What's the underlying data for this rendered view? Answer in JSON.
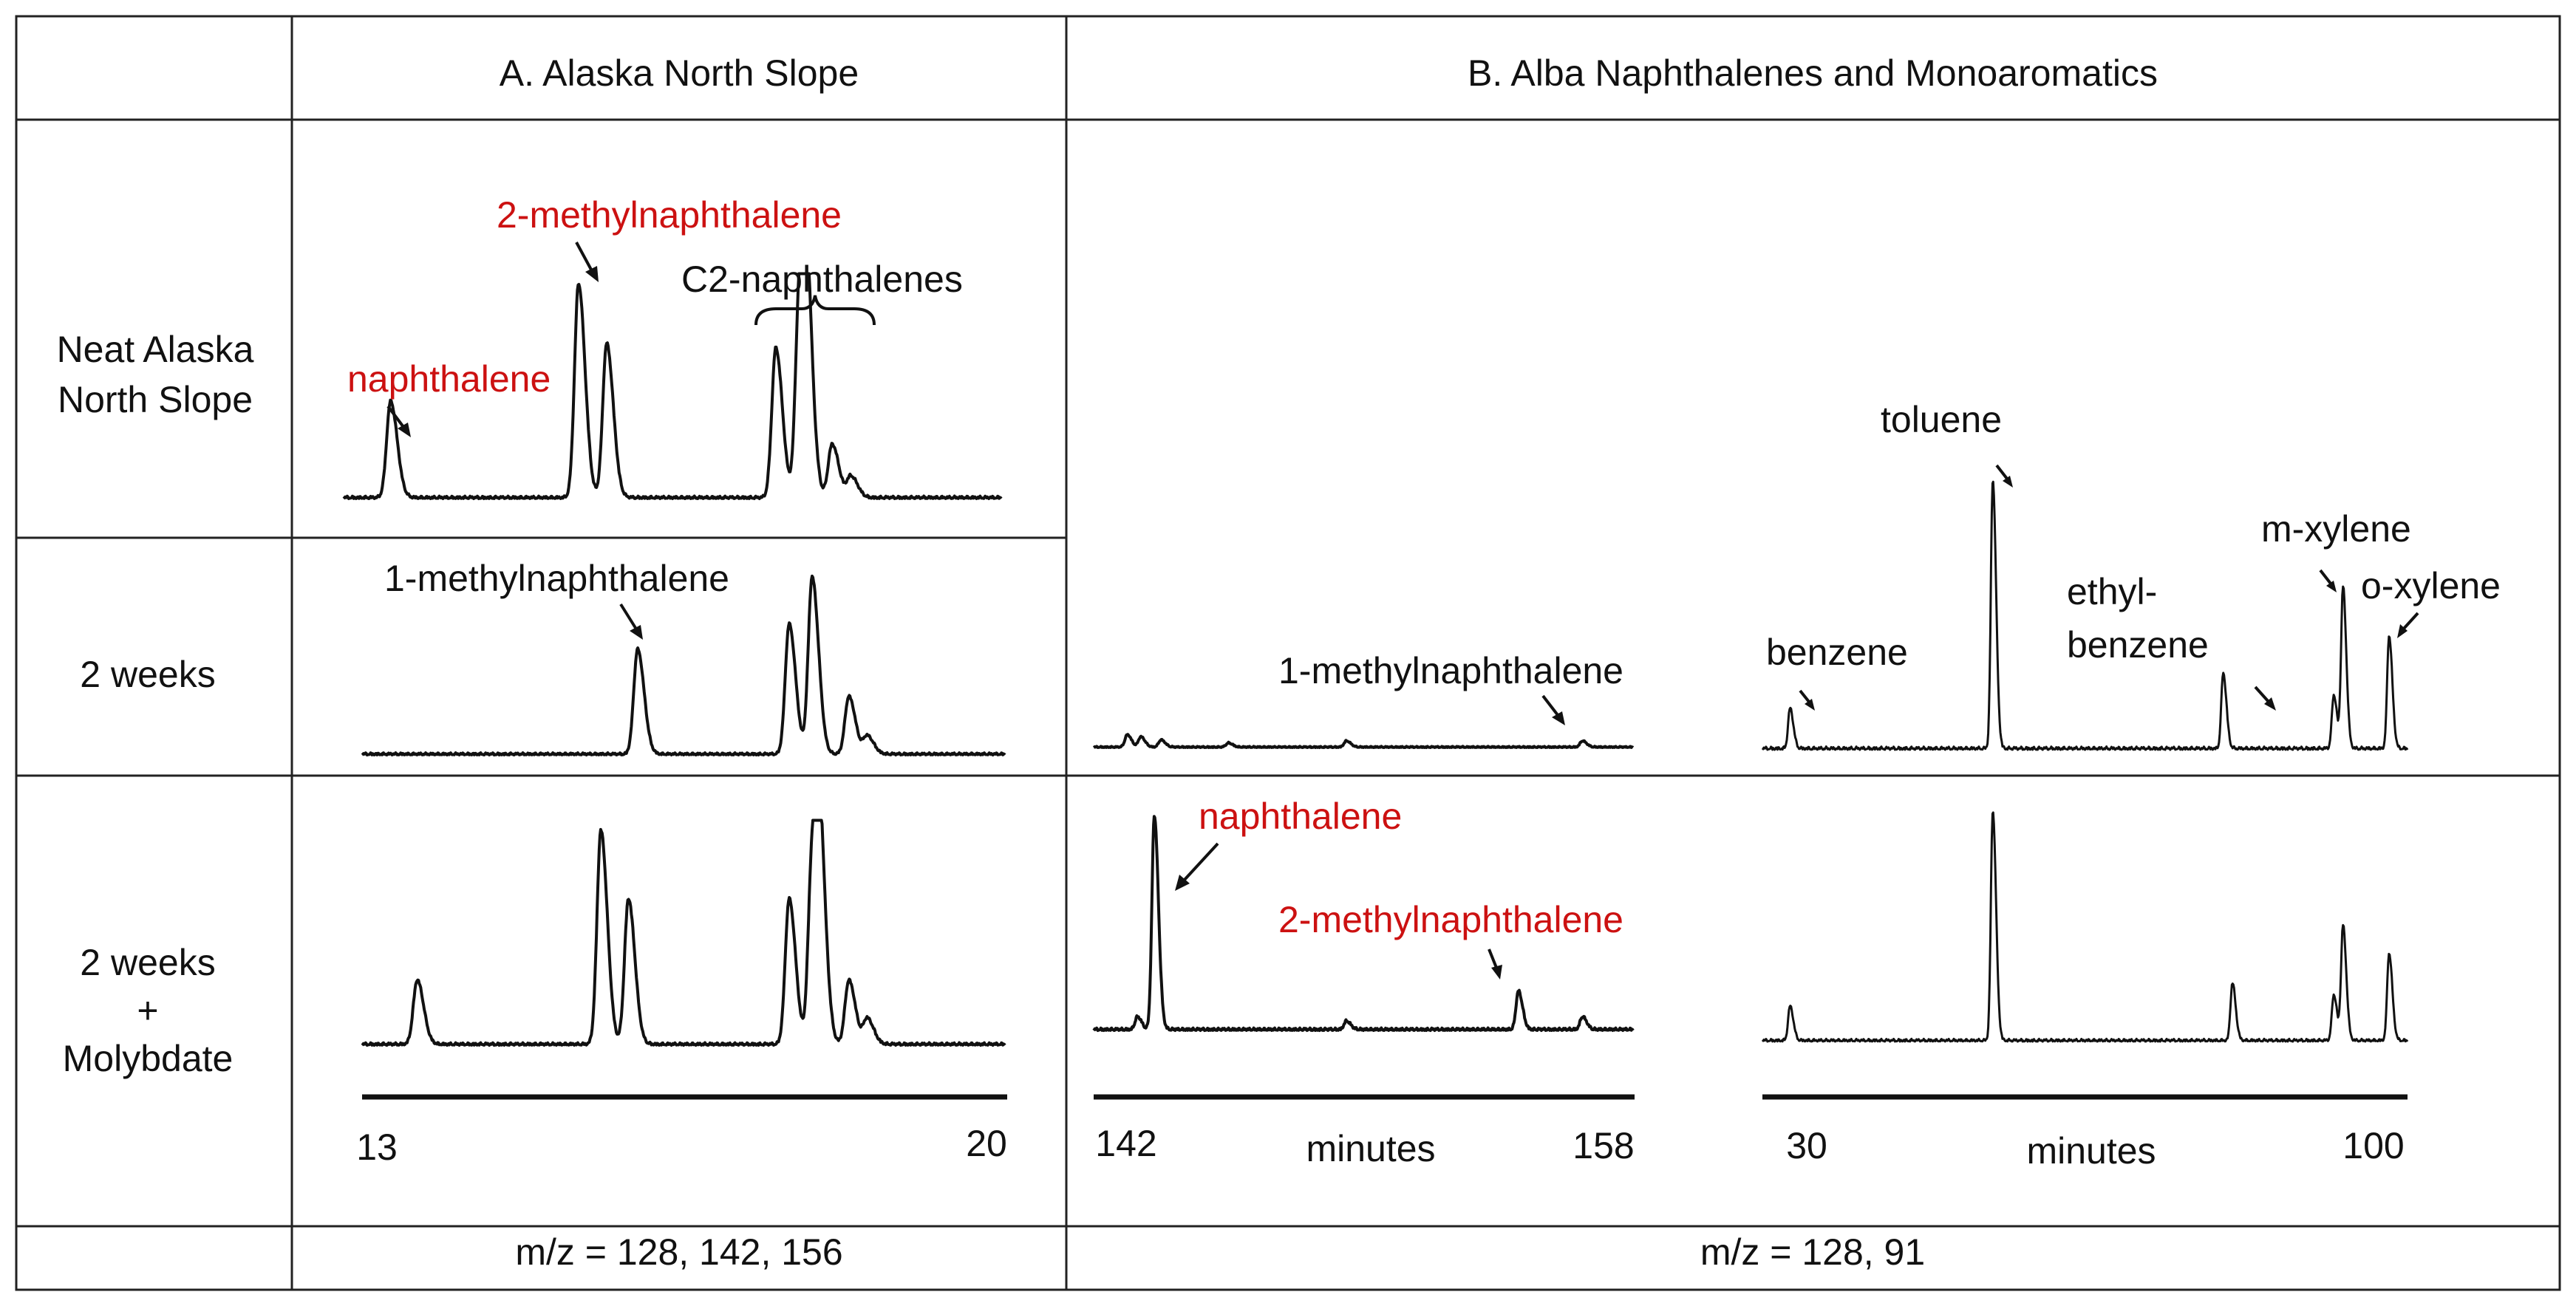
{
  "table": {
    "header_a": "A. Alaska North Slope",
    "header_b": "B. Alba Naphthalenes and Monoaromatics",
    "rows": [
      {
        "label_lines": [
          "Neat Alaska",
          "North Slope"
        ]
      },
      {
        "label_lines": [
          "2 weeks"
        ]
      },
      {
        "label_lines": [
          "2 weeks",
          "+",
          "Molybdate"
        ]
      }
    ],
    "footer_a": "m/z = 128, 142, 156",
    "footer_b": "m/z = 128, 91"
  },
  "annotations": {
    "naphthalene": "naphthalene",
    "methylnaph2": "2-methylnaphthalene",
    "methylnaph1": "1-methylnaphthalene",
    "c2naph": "C2-naphthalenes",
    "benzene": "benzene",
    "toluene": "toluene",
    "ethyl1": "ethyl-",
    "ethyl2": "benzene",
    "mxylene": "m-xylene",
    "oxylene": "o-xylene"
  },
  "colors": {
    "highlight": "#cc1111",
    "ink": "#111111"
  },
  "chart_data": [
    {
      "type": "line",
      "panel": "A",
      "title": "Alaska North Slope",
      "x_range": [
        13,
        20
      ],
      "x_tick_labels": [
        "13",
        "20"
      ],
      "xlabel": "",
      "series": [
        {
          "name": "Neat Alaska North Slope",
          "peaks": [
            {
              "x": 13.5,
              "h": 0.45,
              "label": "naphthalene"
            },
            {
              "x": 15.5,
              "h": 1.0,
              "label": "2-methylnaphthalene"
            },
            {
              "x": 15.8,
              "h": 0.72
            },
            {
              "x": 17.6,
              "h": 0.7
            },
            {
              "x": 17.85,
              "h": 0.88
            },
            {
              "x": 17.92,
              "h": 0.88
            },
            {
              "x": 18.2,
              "h": 0.25
            },
            {
              "x": 18.4,
              "h": 0.1
            }
          ]
        },
        {
          "name": "2 weeks",
          "peaks": [
            {
              "x": 16.0,
              "h": 0.58,
              "label": "1-methylnaphthalene"
            },
            {
              "x": 17.65,
              "h": 0.72
            },
            {
              "x": 17.9,
              "h": 0.98
            },
            {
              "x": 18.3,
              "h": 0.32
            },
            {
              "x": 18.5,
              "h": 0.1
            }
          ]
        },
        {
          "name": "2 weeks + Molybdate",
          "peaks": [
            {
              "x": 13.6,
              "h": 0.3
            },
            {
              "x": 15.6,
              "h": 1.0
            },
            {
              "x": 15.9,
              "h": 0.68
            },
            {
              "x": 17.65,
              "h": 0.68
            },
            {
              "x": 17.9,
              "h": 0.86
            },
            {
              "x": 17.98,
              "h": 0.84
            },
            {
              "x": 18.3,
              "h": 0.3
            },
            {
              "x": 18.5,
              "h": 0.12
            }
          ]
        }
      ]
    },
    {
      "type": "line",
      "panel": "B-naphthalenes",
      "title": "Alba Naphthalenes",
      "x_range": [
        142,
        158
      ],
      "x_tick_labels": [
        "142",
        "158"
      ],
      "xlabel": "minutes",
      "series": [
        {
          "name": "2 weeks",
          "peaks": [
            {
              "x": 143.0,
              "h": 0.12
            },
            {
              "x": 143.4,
              "h": 0.1
            },
            {
              "x": 144.0,
              "h": 0.07
            },
            {
              "x": 146.0,
              "h": 0.04
            },
            {
              "x": 149.5,
              "h": 0.06
            },
            {
              "x": 156.5,
              "h": 0.06,
              "label": "1-methylnaphthalene"
            }
          ]
        },
        {
          "name": "2 weeks + Molybdate",
          "peaks": [
            {
              "x": 143.8,
              "h": 1.0,
              "label": "naphthalene"
            },
            {
              "x": 143.3,
              "h": 0.06
            },
            {
              "x": 149.5,
              "h": 0.04
            },
            {
              "x": 154.6,
              "h": 0.18,
              "label": "2-methylnaphthalene"
            },
            {
              "x": 156.5,
              "h": 0.06
            }
          ]
        }
      ]
    },
    {
      "type": "line",
      "panel": "B-monoaromatics",
      "title": "Alba Monoaromatics",
      "x_range": [
        30,
        100
      ],
      "x_tick_labels": [
        "30",
        "100"
      ],
      "xlabel": "minutes",
      "series": [
        {
          "name": "2 weeks",
          "peaks": [
            {
              "x": 33,
              "h": 0.15,
              "label": "benzene"
            },
            {
              "x": 55,
              "h": 1.0,
              "label": "toluene"
            },
            {
              "x": 80,
              "h": 0.28,
              "label": "ethylbenzene"
            },
            {
              "x": 92,
              "h": 0.2
            },
            {
              "x": 93,
              "h": 0.6,
              "label": "m-xylene"
            },
            {
              "x": 98,
              "h": 0.42,
              "label": "o-xylene"
            }
          ]
        },
        {
          "name": "2 weeks + Molybdate",
          "peaks": [
            {
              "x": 33,
              "h": 0.15
            },
            {
              "x": 55,
              "h": 1.0
            },
            {
              "x": 81,
              "h": 0.25
            },
            {
              "x": 92,
              "h": 0.2
            },
            {
              "x": 93,
              "h": 0.5
            },
            {
              "x": 98,
              "h": 0.38
            }
          ]
        }
      ]
    }
  ]
}
